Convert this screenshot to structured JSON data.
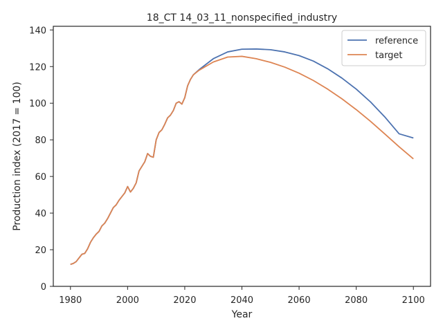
{
  "chart_data": {
    "type": "line",
    "title": "18_CT 14_03_11_nonspecified_industry",
    "xlabel": "Year",
    "ylabel": "Production index (2017 = 100)",
    "xlim": [
      1974,
      2106
    ],
    "ylim": [
      0,
      142
    ],
    "xticks": [
      1980,
      2000,
      2020,
      2040,
      2060,
      2080,
      2100
    ],
    "yticks": [
      0,
      20,
      40,
      60,
      80,
      100,
      120,
      140
    ],
    "grid": false,
    "legend_position": "top-right",
    "series": [
      {
        "name": "reference",
        "color": "#4c72b0",
        "points": [
          [
            1980,
            12
          ],
          [
            1981,
            12.5
          ],
          [
            1982,
            13.5
          ],
          [
            1983,
            15.5
          ],
          [
            1984,
            17.5
          ],
          [
            1985,
            18
          ],
          [
            1986,
            20.5
          ],
          [
            1987,
            24
          ],
          [
            1988,
            26.5
          ],
          [
            1989,
            28.5
          ],
          [
            1990,
            30
          ],
          [
            1991,
            33
          ],
          [
            1992,
            34.5
          ],
          [
            1993,
            37
          ],
          [
            1994,
            40
          ],
          [
            1995,
            43
          ],
          [
            1996,
            44.5
          ],
          [
            1997,
            47
          ],
          [
            1998,
            49
          ],
          [
            1999,
            51
          ],
          [
            2000,
            54.5
          ],
          [
            2001,
            51.5
          ],
          [
            2002,
            53.5
          ],
          [
            2003,
            56.5
          ],
          [
            2004,
            63
          ],
          [
            2005,
            65.5
          ],
          [
            2006,
            68
          ],
          [
            2007,
            72.5
          ],
          [
            2008,
            71
          ],
          [
            2009,
            70.5
          ],
          [
            2010,
            80
          ],
          [
            2011,
            84
          ],
          [
            2012,
            85.5
          ],
          [
            2013,
            88.5
          ],
          [
            2014,
            92
          ],
          [
            2015,
            93.5
          ],
          [
            2016,
            96
          ],
          [
            2017,
            100
          ],
          [
            2018,
            100.8
          ],
          [
            2019,
            99.5
          ],
          [
            2020,
            103
          ],
          [
            2021,
            109.5
          ],
          [
            2022,
            113
          ],
          [
            2023,
            115.5
          ],
          [
            2025,
            118.3
          ],
          [
            2030,
            124.3
          ],
          [
            2035,
            128
          ],
          [
            2040,
            129.5
          ],
          [
            2045,
            129.6
          ],
          [
            2050,
            129.2
          ],
          [
            2055,
            128
          ],
          [
            2060,
            126
          ],
          [
            2065,
            123
          ],
          [
            2070,
            118.8
          ],
          [
            2075,
            113.7
          ],
          [
            2080,
            107.7
          ],
          [
            2085,
            100.7
          ],
          [
            2090,
            92.5
          ],
          [
            2095,
            83.3
          ],
          [
            2100,
            81
          ]
        ]
      },
      {
        "name": "target",
        "color": "#dd8452",
        "points": [
          [
            1980,
            12
          ],
          [
            1981,
            12.5
          ],
          [
            1982,
            13.5
          ],
          [
            1983,
            15.5
          ],
          [
            1984,
            17.5
          ],
          [
            1985,
            18
          ],
          [
            1986,
            20.5
          ],
          [
            1987,
            24
          ],
          [
            1988,
            26.5
          ],
          [
            1989,
            28.5
          ],
          [
            1990,
            30
          ],
          [
            1991,
            33
          ],
          [
            1992,
            34.5
          ],
          [
            1993,
            37
          ],
          [
            1994,
            40
          ],
          [
            1995,
            43
          ],
          [
            1996,
            44.5
          ],
          [
            1997,
            47
          ],
          [
            1998,
            49
          ],
          [
            1999,
            51
          ],
          [
            2000,
            54.5
          ],
          [
            2001,
            51.5
          ],
          [
            2002,
            53.5
          ],
          [
            2003,
            56.5
          ],
          [
            2004,
            63
          ],
          [
            2005,
            65.5
          ],
          [
            2006,
            68
          ],
          [
            2007,
            72.5
          ],
          [
            2008,
            71
          ],
          [
            2009,
            70.5
          ],
          [
            2010,
            80
          ],
          [
            2011,
            84
          ],
          [
            2012,
            85.5
          ],
          [
            2013,
            88.5
          ],
          [
            2014,
            92
          ],
          [
            2015,
            93.5
          ],
          [
            2016,
            96
          ],
          [
            2017,
            100
          ],
          [
            2018,
            100.8
          ],
          [
            2019,
            99.5
          ],
          [
            2020,
            103
          ],
          [
            2021,
            109.5
          ],
          [
            2022,
            113
          ],
          [
            2023,
            115.5
          ],
          [
            2025,
            118
          ],
          [
            2030,
            122.5
          ],
          [
            2035,
            125.2
          ],
          [
            2040,
            125.6
          ],
          [
            2045,
            124.3
          ],
          [
            2050,
            122.3
          ],
          [
            2055,
            119.7
          ],
          [
            2060,
            116.4
          ],
          [
            2065,
            112.4
          ],
          [
            2070,
            107.7
          ],
          [
            2075,
            102.4
          ],
          [
            2080,
            96.5
          ],
          [
            2085,
            90.1
          ],
          [
            2090,
            83.2
          ],
          [
            2095,
            76.2
          ],
          [
            2100,
            69.6
          ]
        ]
      }
    ]
  }
}
